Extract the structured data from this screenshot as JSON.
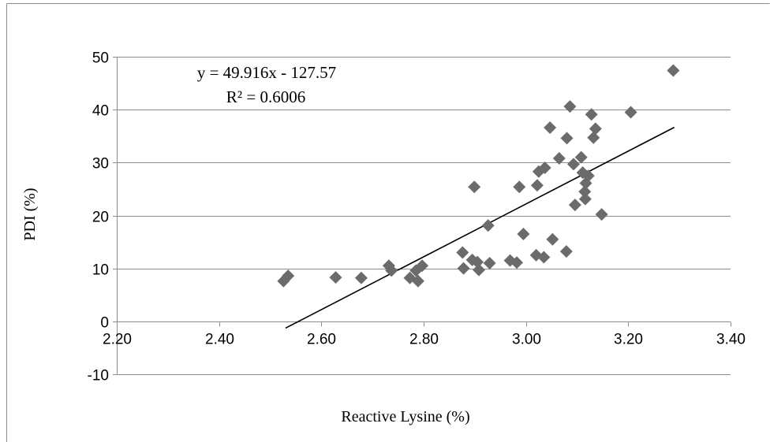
{
  "chart_data": {
    "type": "scatter",
    "title": "",
    "xlabel": "Reactive Lysine (%)",
    "ylabel": "PDI (%)",
    "xlim": [
      2.2,
      3.4
    ],
    "ylim": [
      -10,
      50
    ],
    "x_ticks": [
      "2.20",
      "2.40",
      "2.60",
      "2.80",
      "3.00",
      "3.20",
      "3.40"
    ],
    "y_ticks": [
      "-10",
      "0",
      "10",
      "20",
      "30",
      "40",
      "50"
    ],
    "grid": "horizontal",
    "legend": "none",
    "marker_color": "#6b6b6b",
    "series": [
      {
        "marker": "diamond",
        "points": [
          [
            2.526,
            7.6
          ],
          [
            2.535,
            8.6
          ],
          [
            2.628,
            8.3
          ],
          [
            2.678,
            8.2
          ],
          [
            2.732,
            10.5
          ],
          [
            2.737,
            9.6
          ],
          [
            2.773,
            8.2
          ],
          [
            2.785,
            9.6
          ],
          [
            2.789,
            7.6
          ],
          [
            2.797,
            10.5
          ],
          [
            2.876,
            13.0
          ],
          [
            2.878,
            10.0
          ],
          [
            2.895,
            11.6
          ],
          [
            2.899,
            25.4
          ],
          [
            2.905,
            11.2
          ],
          [
            2.908,
            9.7
          ],
          [
            2.926,
            18.1
          ],
          [
            2.929,
            11.0
          ],
          [
            2.969,
            11.5
          ],
          [
            2.982,
            11.1
          ],
          [
            2.987,
            25.4
          ],
          [
            2.995,
            16.5
          ],
          [
            3.02,
            12.5
          ],
          [
            3.022,
            25.7
          ],
          [
            3.025,
            28.3
          ],
          [
            3.035,
            12.1
          ],
          [
            3.037,
            29.0
          ],
          [
            3.047,
            36.6
          ],
          [
            3.052,
            15.5
          ],
          [
            3.065,
            30.8
          ],
          [
            3.079,
            13.2
          ],
          [
            3.08,
            34.6
          ],
          [
            3.086,
            40.6
          ],
          [
            3.093,
            29.7
          ],
          [
            3.096,
            22.0
          ],
          [
            3.108,
            31.0
          ],
          [
            3.111,
            28.1
          ],
          [
            3.115,
            24.5
          ],
          [
            3.116,
            23.1
          ],
          [
            3.117,
            26.1
          ],
          [
            3.122,
            27.5
          ],
          [
            3.128,
            39.1
          ],
          [
            3.132,
            34.7
          ],
          [
            3.136,
            36.4
          ],
          [
            3.148,
            20.2
          ],
          [
            3.205,
            39.5
          ],
          [
            3.288,
            47.4
          ]
        ]
      }
    ],
    "trendline": {
      "slope": 49.916,
      "intercept": -127.57,
      "x_range": [
        2.53,
        3.29
      ],
      "color": "#000000"
    },
    "annotations": {
      "equation": "y = 49.916x - 127.57",
      "r_squared": "R² = 0.6006"
    }
  }
}
